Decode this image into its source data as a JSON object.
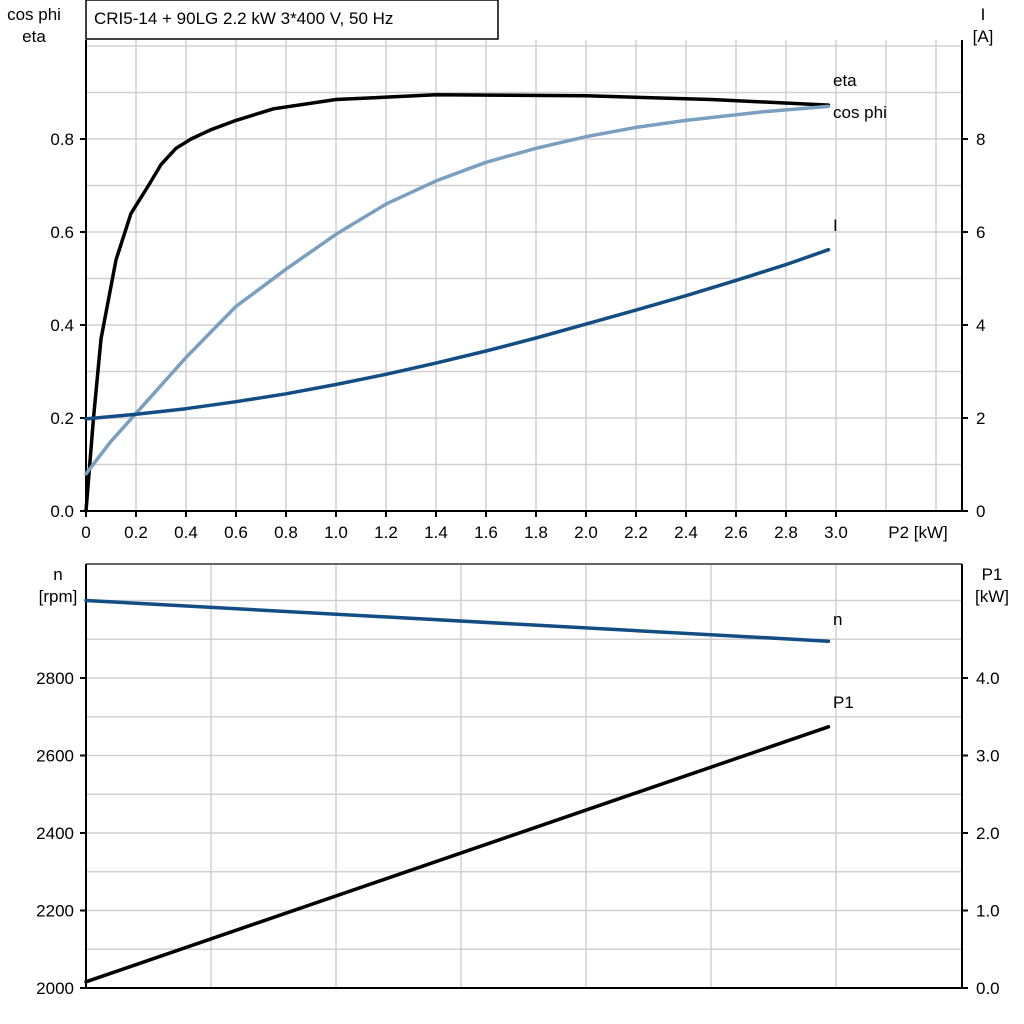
{
  "chart_data": [
    {
      "type": "line",
      "title": "CRI5-14 + 90LG   2.2 kW   3*400 V, 50 Hz",
      "xlabel": "P2 [kW]",
      "ylabel_left": [
        "cos phi",
        "eta"
      ],
      "ylabel_right": [
        "I",
        "[A]"
      ],
      "xlim": [
        0,
        3.5
      ],
      "ylim_left": [
        0,
        1.0
      ],
      "ylim_right": [
        0,
        10
      ],
      "x_ticks": [
        "0",
        "0.2",
        "0.4",
        "0.6",
        "0.8",
        "1.0",
        "1.2",
        "1.4",
        "1.6",
        "1.8",
        "2.0",
        "2.2",
        "2.4",
        "2.6",
        "2.8",
        "3.0"
      ],
      "y_ticks_left": [
        "0.0",
        "0.2",
        "0.4",
        "0.6",
        "0.8"
      ],
      "y_ticks_right": [
        "0",
        "2",
        "4",
        "6",
        "8"
      ],
      "grid": true,
      "series": [
        {
          "name": "eta",
          "axis": "left",
          "color": "#000000",
          "x": [
            0,
            0.03,
            0.06,
            0.12,
            0.18,
            0.25,
            0.3,
            0.36,
            0.42,
            0.5,
            0.6,
            0.75,
            1.0,
            1.4,
            2.0,
            2.5,
            2.97
          ],
          "y": [
            0,
            0.2,
            0.37,
            0.54,
            0.64,
            0.7,
            0.745,
            0.78,
            0.8,
            0.82,
            0.84,
            0.865,
            0.885,
            0.895,
            0.893,
            0.885,
            0.873
          ]
        },
        {
          "name": "cos phi",
          "axis": "left",
          "color": "#7a9fc0",
          "x": [
            0,
            0.1,
            0.2,
            0.4,
            0.6,
            0.8,
            1.0,
            1.2,
            1.4,
            1.6,
            1.8,
            2.0,
            2.2,
            2.4,
            2.7,
            2.97
          ],
          "y": [
            0.08,
            0.15,
            0.21,
            0.33,
            0.44,
            0.52,
            0.595,
            0.66,
            0.71,
            0.75,
            0.78,
            0.805,
            0.825,
            0.84,
            0.858,
            0.87
          ]
        },
        {
          "name": "I",
          "axis": "right",
          "color": "#124e83",
          "x": [
            0,
            0.2,
            0.4,
            0.6,
            0.8,
            1.0,
            1.2,
            1.4,
            1.6,
            1.8,
            2.0,
            2.2,
            2.4,
            2.6,
            2.8,
            2.97
          ],
          "y": [
            1.98,
            2.08,
            2.2,
            2.35,
            2.52,
            2.72,
            2.94,
            3.18,
            3.44,
            3.72,
            4.02,
            4.32,
            4.63,
            4.96,
            5.3,
            5.62
          ]
        }
      ]
    },
    {
      "type": "line",
      "xlim": [
        0,
        3.5
      ],
      "ylabel_left": [
        "n",
        "[rpm]"
      ],
      "ylabel_right": [
        "P1",
        "[kW]"
      ],
      "ylim_left": [
        2000,
        3100
      ],
      "ylim_right": [
        0,
        5.5
      ],
      "y_ticks_left": [
        "2000",
        "2200",
        "2400",
        "2600",
        "2800"
      ],
      "y_ticks_right": [
        "0.0",
        "1.0",
        "2.0",
        "3.0",
        "4.0"
      ],
      "grid": true,
      "series": [
        {
          "name": "n",
          "axis": "left",
          "color": "#124e83",
          "x": [
            0,
            2.97
          ],
          "y": [
            3000,
            2895
          ]
        },
        {
          "name": "P1",
          "axis": "right",
          "color": "#000000",
          "x": [
            0,
            2.97
          ],
          "y": [
            0.08,
            3.37
          ]
        }
      ]
    }
  ]
}
